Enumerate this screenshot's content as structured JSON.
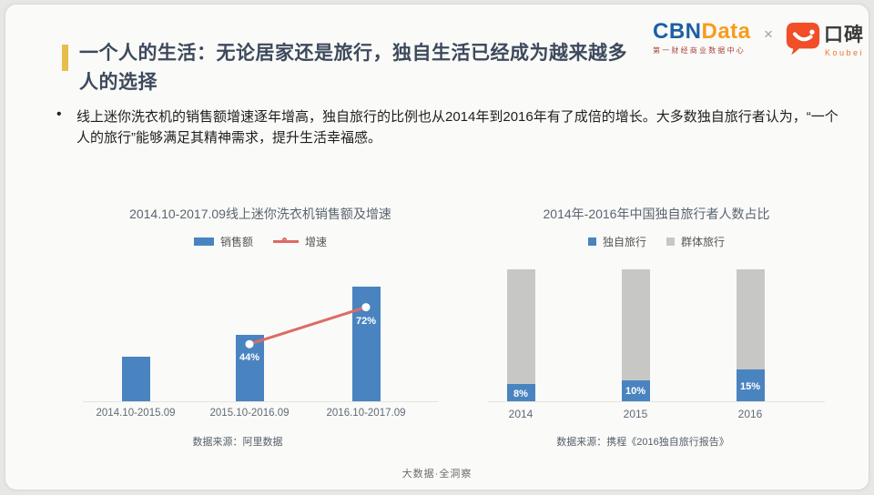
{
  "header": {
    "title_lines": [
      "一个人的生活：无论居家还是旅行，独自生活已经成为越来越多",
      "人的选择"
    ],
    "bullet_marker": "•",
    "bullet": "线上迷你洗衣机的销售额增速逐年增高，独自旅行的比例也从2014年到2016年有了成倍的增长。大多数独自旅行者认为，“一个人的旅行”能够满足其精神需求，提升生活幸福感。",
    "accent_color": "#E7BE4D",
    "logos": {
      "cbn": "CBN",
      "data": "Data",
      "cbn_blue": "#1D5FA6",
      "cbn_orange": "#F79C1D",
      "cbndata_sub": "第一财经商业数据中心",
      "cross": "×",
      "koubei_cn": "口碑",
      "koubei_en": "Koubei",
      "koubei_orange": "#F04F28"
    }
  },
  "chart_data": [
    {
      "type": "bar",
      "subtype": "bar+line combo, no value axis shown",
      "title": "2014.10-2017.09线上迷你洗衣机销售额及增速",
      "categories": [
        "2014.10-2015.09",
        "2015.10-2016.09",
        "2016.10-2017.09"
      ],
      "series": [
        {
          "name": "销售额",
          "kind": "bar",
          "values_relative": [
            49,
            73,
            126
          ],
          "color": "#4A84C0"
        },
        {
          "name": "增速",
          "kind": "line",
          "values_pct": [
            null,
            44,
            72
          ],
          "labels": [
            "",
            "44%",
            "72%"
          ],
          "color": "#DC6B66",
          "marker_color": "#FFFFFF"
        }
      ],
      "legend_position": "top",
      "grid": false,
      "source": "数据来源：阿里数据"
    },
    {
      "type": "bar",
      "subtype": "stacked bar normalized to 100%",
      "title": "2014年-2016年中国独自旅行者人数占比",
      "categories": [
        "2014",
        "2015",
        "2016"
      ],
      "series": [
        {
          "name": "独自旅行",
          "values_pct": [
            8,
            10,
            15
          ],
          "labels": [
            "8%",
            "10%",
            "15%"
          ],
          "color": "#4A84C0"
        },
        {
          "name": "群体旅行",
          "values_pct": [
            92,
            90,
            85
          ],
          "color": "#C7C7C5"
        }
      ],
      "legend_position": "top",
      "grid": false,
      "source": "数据来源：携程《2016独自旅行报告》"
    }
  ],
  "page": {
    "footer": "大数据·全洞察"
  }
}
